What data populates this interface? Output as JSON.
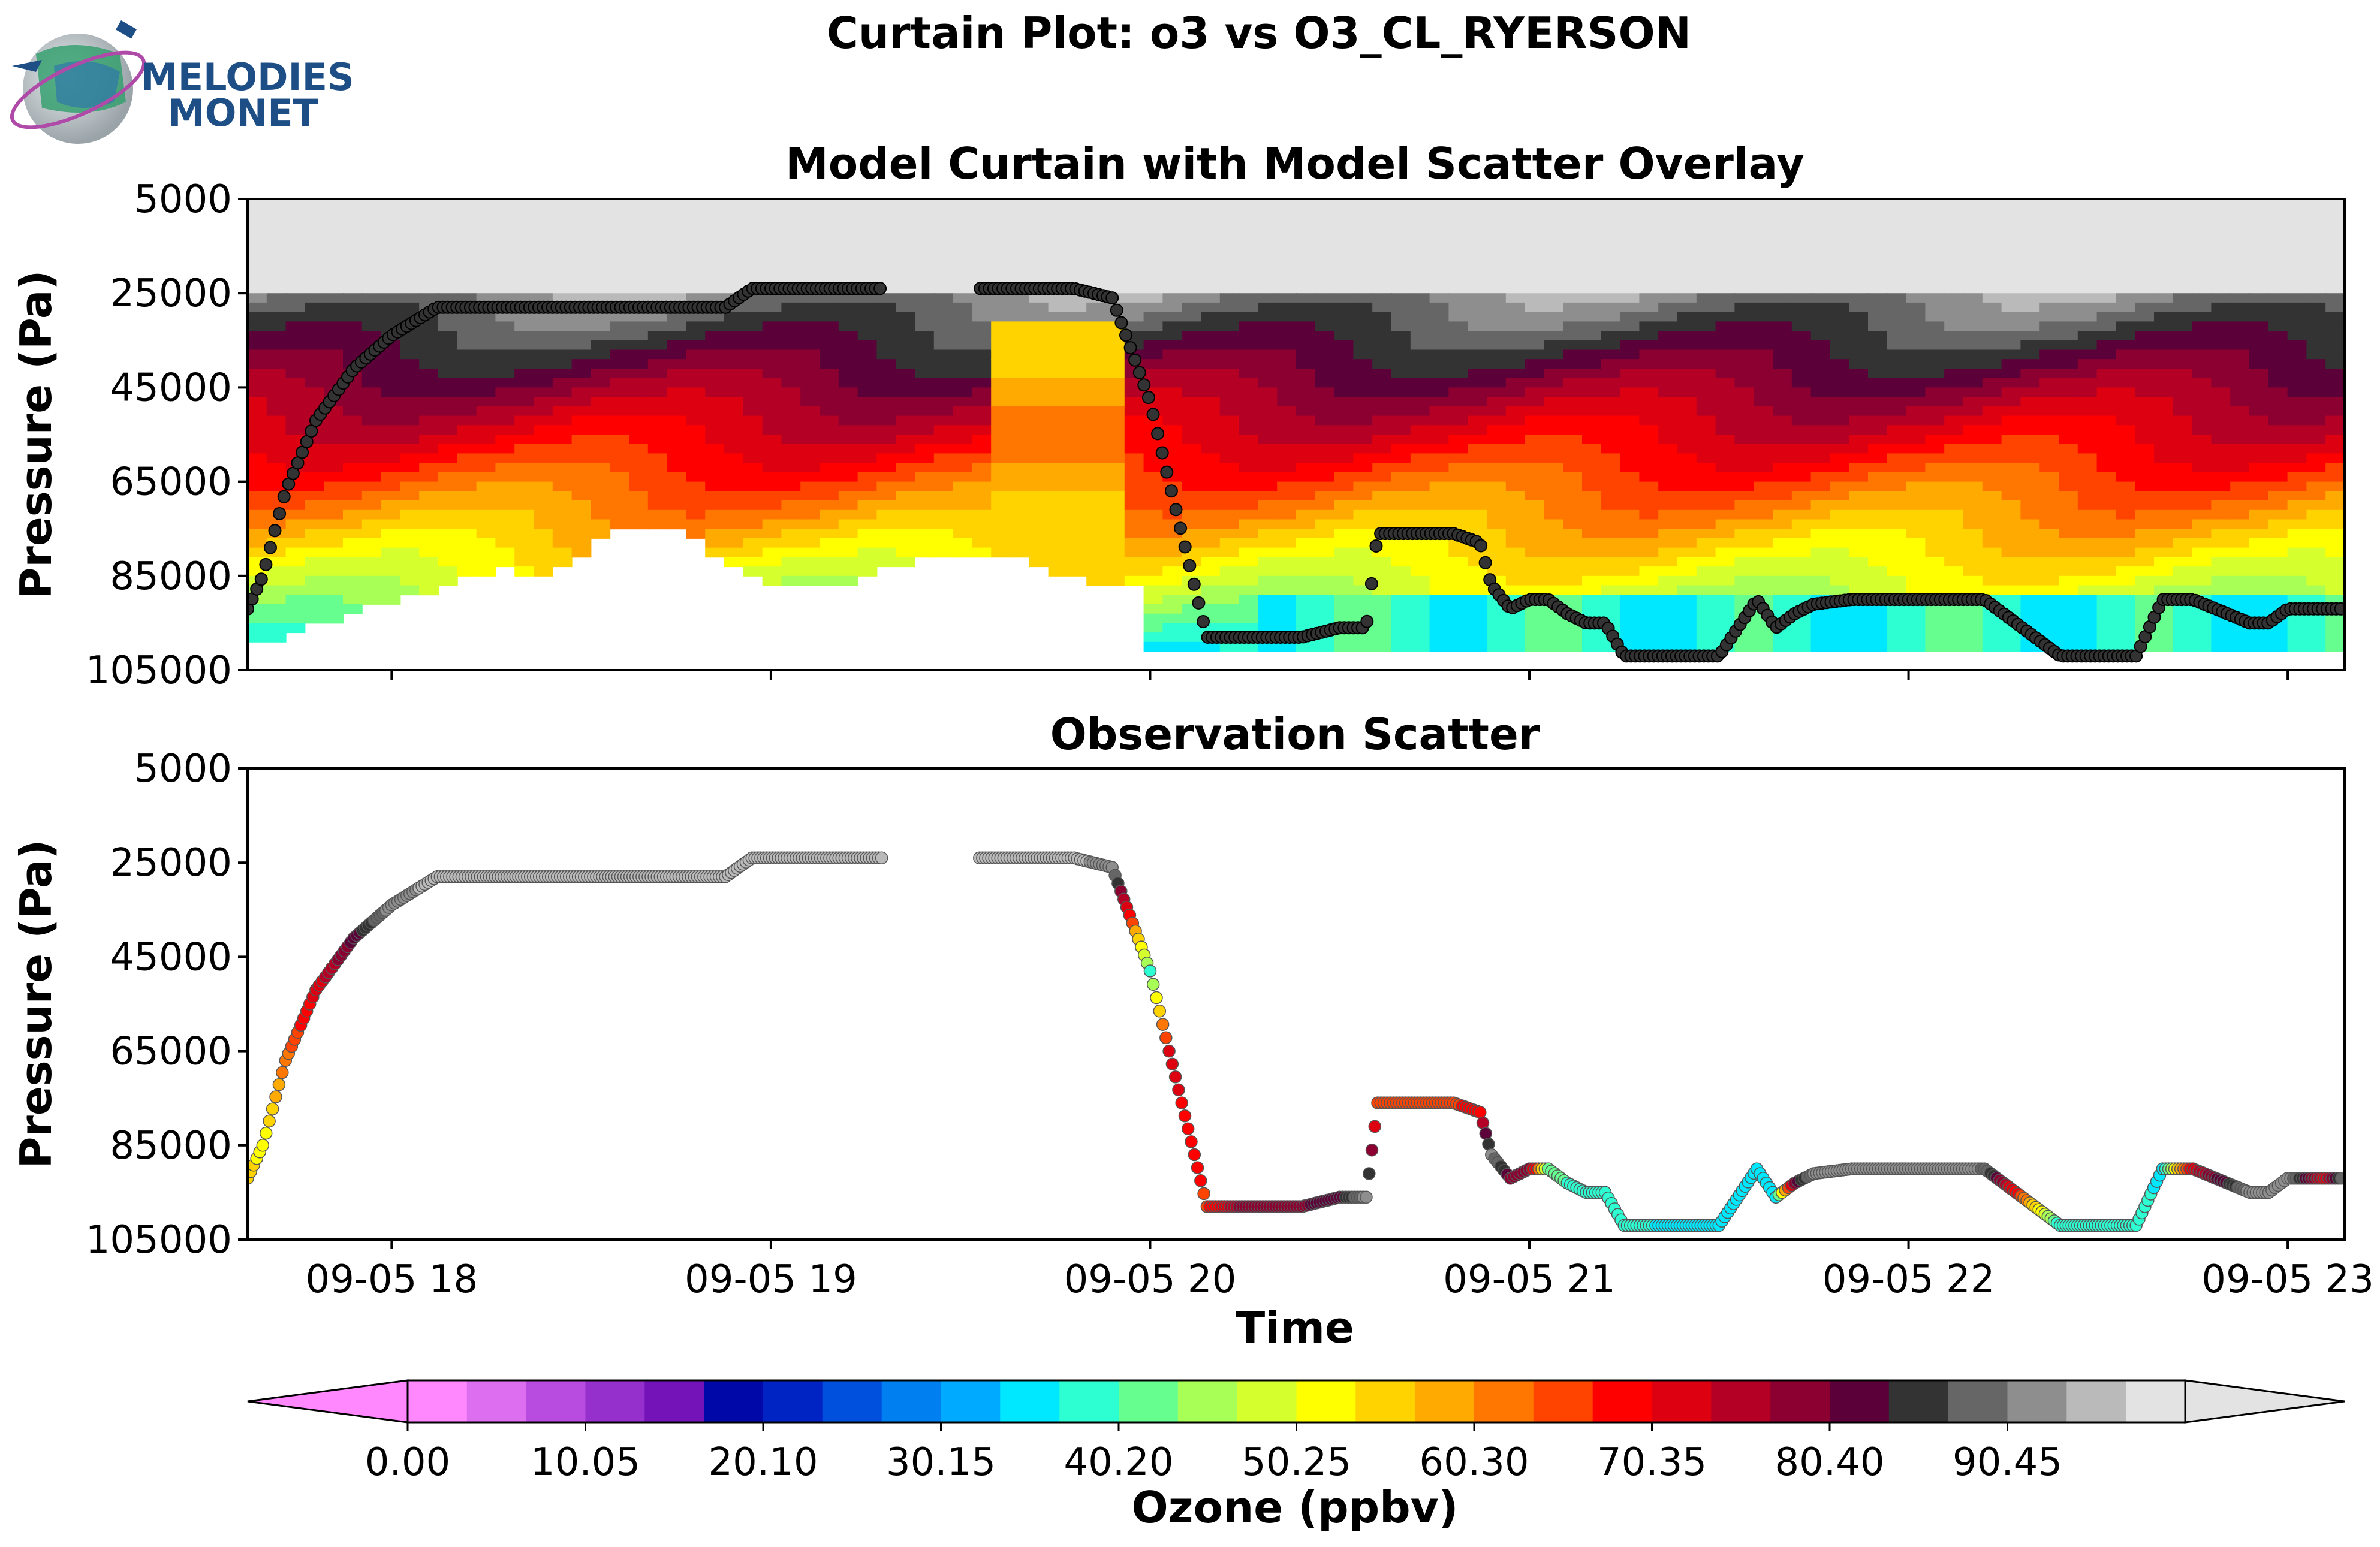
{
  "suptitle": "Curtain Plot: o3 vs O3_CL_RYERSON",
  "logo": {
    "line1": "MELODIES",
    "line2": "MONET"
  },
  "chart_data": [
    {
      "type": "heatmap",
      "title": "Model Curtain with Model Scatter Overlay",
      "ylabel": "Pressure (Pa)",
      "ylim": [
        105000,
        5000
      ],
      "yticks": [
        "5000",
        "25000",
        "45000",
        "65000",
        "85000",
        "105000"
      ],
      "xlim_hours": [
        17.62,
        23.15
      ],
      "description_colorscale": "contour-filled model ozone curtain with model-sampled values along the flight track overlaid as scatter"
    },
    {
      "type": "scatter",
      "title": "Observation Scatter",
      "ylabel": "Pressure (Pa)",
      "xlabel": "Time",
      "ylim": [
        105000,
        5000
      ],
      "yticks": [
        "5000",
        "25000",
        "45000",
        "65000",
        "85000",
        "105000"
      ],
      "xticks": [
        "09-05 18",
        "09-05 19",
        "09-05 20",
        "09-05 21",
        "09-05 22",
        "09-05 23"
      ],
      "track": {
        "time_hours": [
          17.62,
          17.66,
          17.72,
          17.8,
          17.9,
          18.0,
          18.12,
          18.25,
          18.35,
          18.5,
          18.7,
          18.88,
          18.95,
          19.05,
          19.3,
          19.55,
          19.75,
          19.8,
          19.9,
          20.0,
          20.05,
          20.15,
          20.25,
          20.4,
          20.5,
          20.57,
          20.6,
          20.65,
          20.8,
          20.87,
          20.9,
          20.95,
          21.0,
          21.05,
          21.1,
          21.15,
          21.2,
          21.25,
          21.3,
          21.35,
          21.5,
          21.6,
          21.65,
          21.7,
          21.75,
          21.85,
          22.0,
          22.15,
          22.2,
          22.4,
          22.5,
          22.55,
          22.6,
          22.67,
          22.75,
          22.9,
          22.95,
          23.0,
          23.1,
          23.15
        ],
        "pressure_pa": [
          92000,
          85000,
          67000,
          52000,
          41000,
          34000,
          28000,
          28000,
          28000,
          28000,
          28000,
          28000,
          24000,
          24000,
          24000,
          24000,
          24000,
          24000,
          26000,
          48000,
          65000,
          98000,
          98000,
          98000,
          96000,
          96000,
          76000,
          76000,
          76000,
          78000,
          87000,
          92000,
          90000,
          90000,
          93000,
          95000,
          95000,
          102000,
          102000,
          102000,
          102000,
          90000,
          96000,
          93000,
          91000,
          90000,
          90000,
          90000,
          90000,
          102000,
          102000,
          102000,
          102000,
          90000,
          90000,
          95000,
          95000,
          92000,
          92000,
          92000
        ],
        "ozone_ppbv": [
          55,
          52,
          62,
          72,
          82,
          92,
          95,
          95,
          95,
          95,
          95,
          95,
          95,
          95,
          95,
          95,
          95,
          95,
          92,
          40,
          72,
          66,
          80,
          80,
          82,
          92,
          66,
          66,
          66,
          70,
          92,
          80,
          80,
          42,
          40,
          40,
          40,
          40,
          38,
          36,
          36,
          36,
          36,
          80,
          92,
          92,
          92,
          92,
          90,
          38,
          38,
          38,
          38,
          36,
          72,
          92,
          92,
          92,
          72,
          92
        ]
      }
    }
  ],
  "colorbar": {
    "label": "Ozone (ppbv)",
    "ticks": [
      "0.00",
      "10.05",
      "20.10",
      "30.15",
      "40.20",
      "50.25",
      "60.30",
      "70.35",
      "80.40",
      "90.45"
    ],
    "colors": [
      "#ff88ff",
      "#dd6ef0",
      "#b84ce0",
      "#9530cc",
      "#7413b8",
      "#0008a8",
      "#0023c4",
      "#004fdd",
      "#0080f0",
      "#00aaff",
      "#00e8ff",
      "#2dffd2",
      "#66ff8f",
      "#a8ff55",
      "#d6ff2e",
      "#ffff00",
      "#ffd300",
      "#ffaa00",
      "#ff7700",
      "#ff4400",
      "#ff0000",
      "#dd0011",
      "#b50026",
      "#8b0030",
      "#5b0038",
      "#333333",
      "#666666",
      "#8e8e8e",
      "#bababa",
      "#e3e3e3"
    ],
    "under_color": "#ff88ff",
    "over_color": "#e3e3e3",
    "vmin": 0,
    "vmax": 100.5
  }
}
